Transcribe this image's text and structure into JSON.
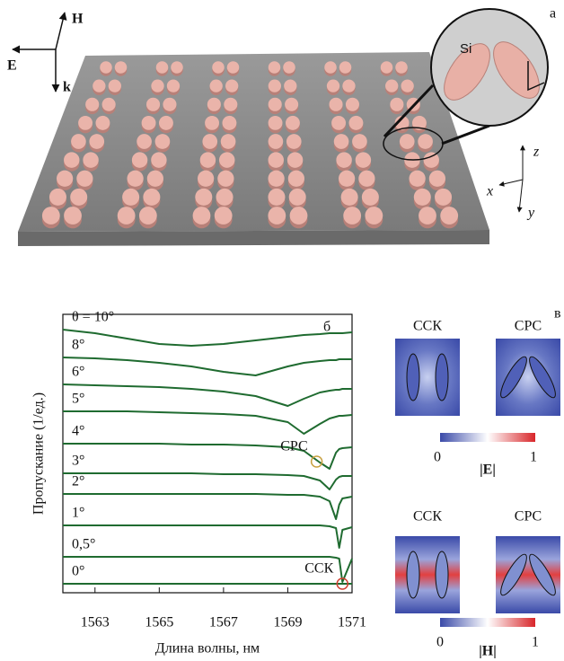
{
  "panel_a": {
    "label": "а",
    "vectors": {
      "h": "H",
      "e": "E",
      "k": "k"
    },
    "inset": "Si",
    "axes": {
      "x": "x",
      "y": "y",
      "z": "z"
    }
  },
  "chart_data": {
    "type": "line",
    "panel_label": "б",
    "x_label": "Длина волны, нм",
    "y_label": "Пропускание (1/ед.)",
    "color": "#1f6b30",
    "xlim": [
      1562,
      1571
    ],
    "ylim": [
      0,
      31
    ],
    "xticks": [
      1563,
      1565,
      1567,
      1569,
      1571
    ],
    "x": [
      1562,
      1563,
      1564,
      1565,
      1566,
      1567,
      1568,
      1569,
      1569.5,
      1570,
      1570.3,
      1570.5,
      1570.6,
      1570.7,
      1571
    ],
    "series": [
      {
        "name": "θ = 10°",
        "values": [
          29.3,
          28.9,
          28.3,
          27.7,
          27.5,
          27.7,
          28.1,
          28.5,
          28.7,
          28.8,
          28.9,
          28.9,
          28.9,
          28.9,
          29.0
        ]
      },
      {
        "name": "8°",
        "values": [
          26.2,
          26.1,
          25.9,
          25.6,
          25.2,
          24.6,
          24.2,
          25.2,
          25.6,
          25.8,
          25.9,
          25.9,
          26.0,
          26.0,
          26.0
        ]
      },
      {
        "name": "6°",
        "values": [
          23.2,
          23.1,
          23.0,
          22.9,
          22.7,
          22.4,
          21.9,
          20.8,
          21.6,
          22.3,
          22.5,
          22.6,
          22.6,
          22.7,
          22.7
        ]
      },
      {
        "name": "5°",
        "values": [
          20.2,
          20.2,
          20.2,
          20.1,
          20.0,
          19.9,
          19.7,
          19.0,
          17.7,
          18.8,
          19.4,
          19.6,
          19.7,
          19.7,
          19.8
        ]
      },
      {
        "name": "4°",
        "values": [
          16.6,
          16.6,
          16.6,
          16.6,
          16.5,
          16.5,
          16.4,
          16.2,
          15.8,
          14.5,
          13.8,
          15.6,
          16.0,
          16.1,
          16.2
        ]
      },
      {
        "name": "3°",
        "values": [
          13.3,
          13.3,
          13.3,
          13.3,
          13.3,
          13.2,
          13.2,
          13.1,
          13.0,
          12.5,
          11.5,
          12.6,
          12.9,
          13.0,
          13.0
        ]
      },
      {
        "name": "2°",
        "values": [
          11.0,
          11.0,
          11.0,
          11.0,
          11.0,
          11.0,
          11.0,
          10.9,
          10.9,
          10.7,
          10.2,
          8.2,
          9.8,
          10.5,
          10.7
        ]
      },
      {
        "name": "1°",
        "values": [
          7.5,
          7.5,
          7.5,
          7.5,
          7.5,
          7.5,
          7.5,
          7.5,
          7.5,
          7.5,
          7.4,
          7.2,
          5.0,
          7.0,
          7.3
        ]
      },
      {
        "name": "0,5°",
        "values": [
          4.0,
          4.0,
          4.0,
          4.0,
          4.0,
          4.0,
          4.0,
          4.0,
          4.0,
          4.0,
          4.0,
          3.9,
          3.8,
          1.2,
          3.8
        ]
      },
      {
        "name": "0°",
        "values": [
          1.0,
          1.0,
          1.0,
          1.0,
          1.0,
          1.0,
          1.0,
          1.0,
          1.0,
          1.0,
          1.0,
          1.0,
          1.0,
          1.0,
          1.0
        ]
      }
    ],
    "annotations": [
      {
        "text": "СРС",
        "x": 1569.9,
        "y": 14.6,
        "color": "#c8a040"
      },
      {
        "text": "ССК",
        "x": 1570.7,
        "y": 1.0,
        "color": "#d04030"
      }
    ]
  },
  "panel_c": {
    "label": "в",
    "e_field": {
      "titles": [
        "ССК",
        "СРС"
      ],
      "colorbar": {
        "min": 0,
        "max": 1,
        "label": "|E|"
      }
    },
    "h_field": {
      "titles": [
        "ССК",
        "СРС"
      ],
      "colorbar": {
        "min": 0,
        "max": 1,
        "label": "|H|"
      }
    }
  }
}
